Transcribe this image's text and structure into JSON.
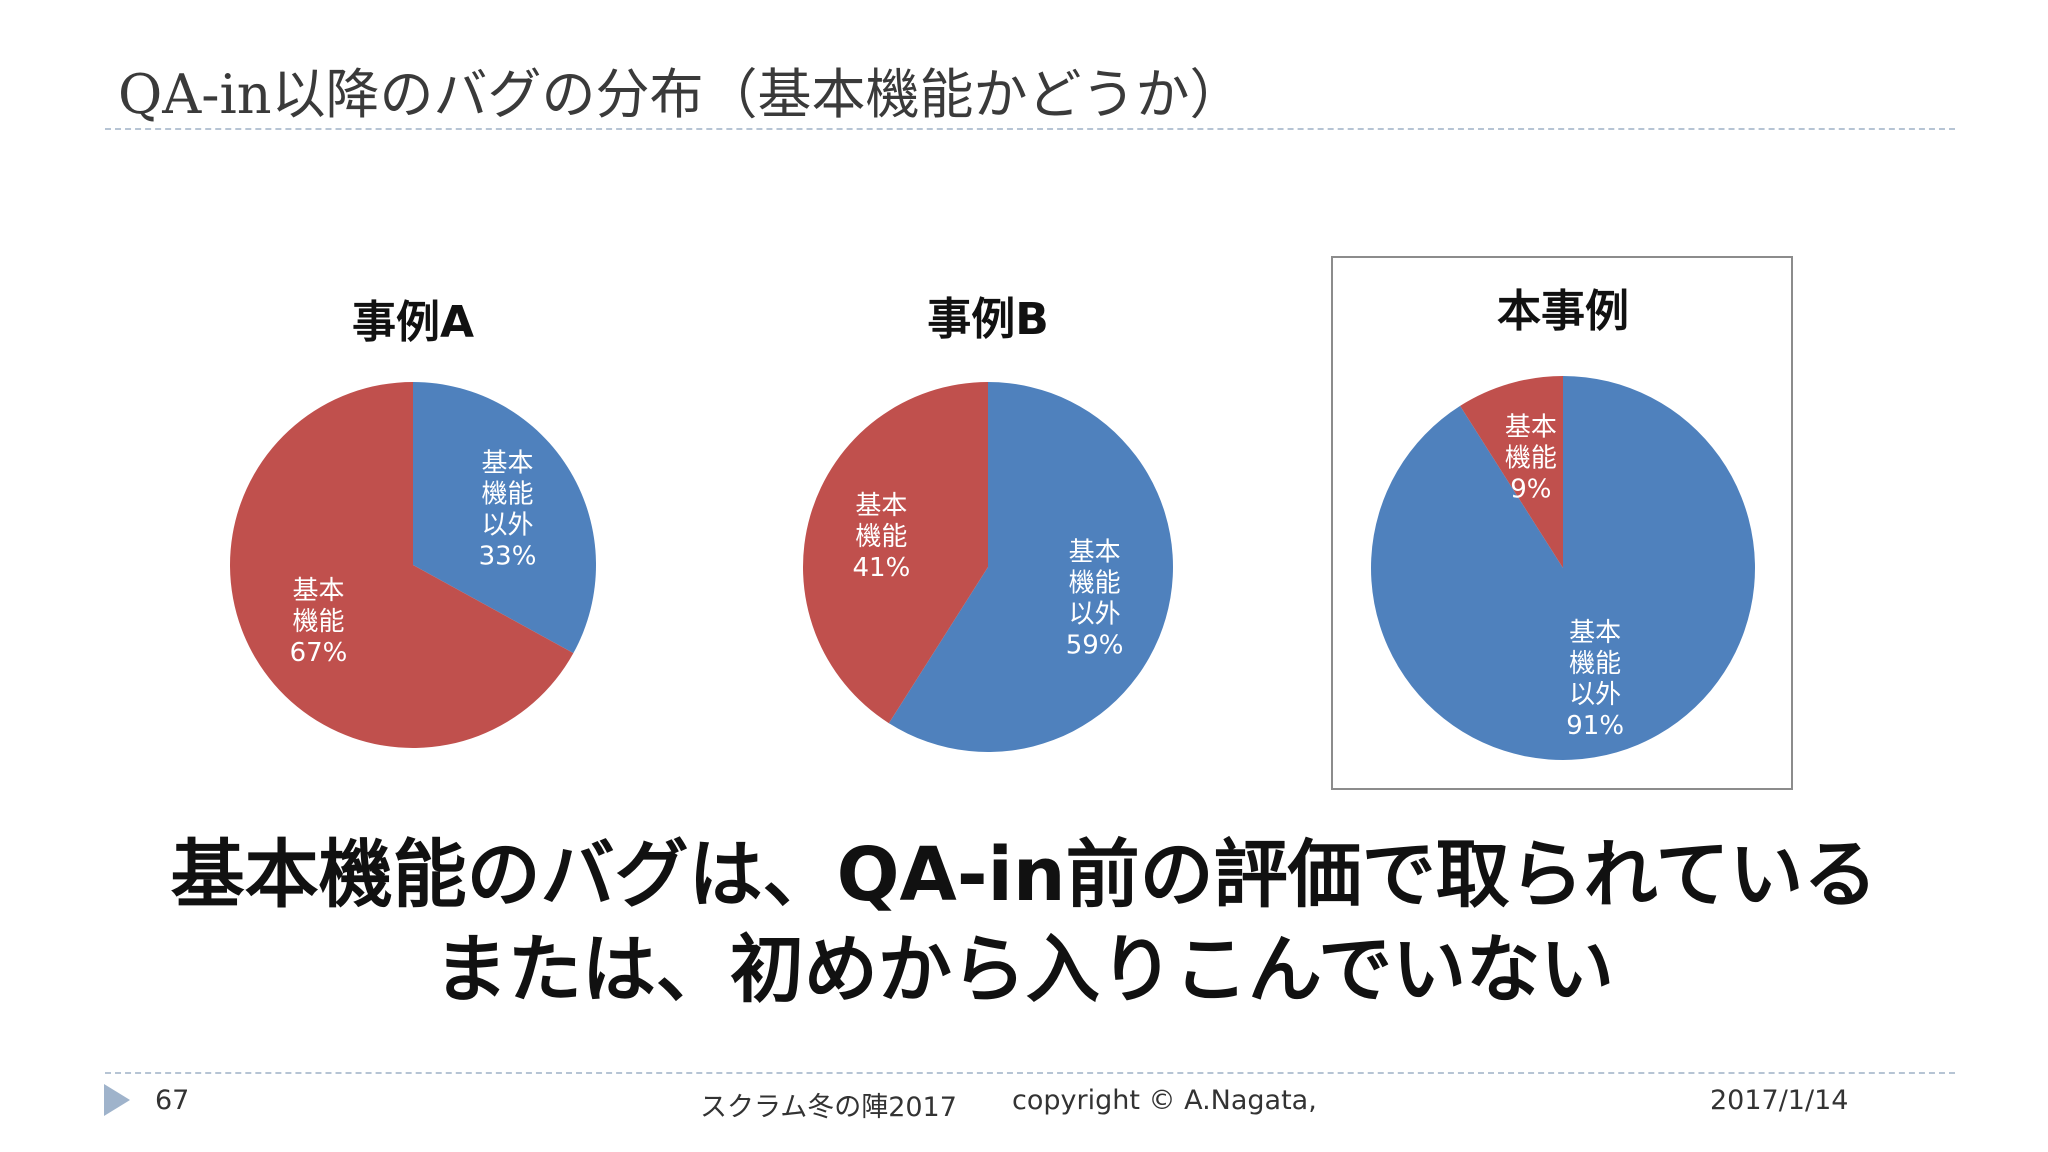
{
  "slide": {
    "title": "QA-in以降のバグの分布（基本機能かどうか）",
    "message_line1": "基本機能のバグは、QA-in前の評価で取られている",
    "message_line2": "または、初めから入りこんでいない"
  },
  "footer": {
    "page_number": "67",
    "event": "スクラム冬の陣2017",
    "copyright": "copyright © A.Nagata,",
    "date": "2017/1/14"
  },
  "colors": {
    "basic": "#c0504d",
    "non_basic": "#4f81bd"
  },
  "chart_data": [
    {
      "type": "pie",
      "title": "事例A",
      "slices": [
        {
          "name": "基本機能以外",
          "value": 33,
          "label_lines": [
            "基本",
            "機能",
            "以外",
            "33%"
          ],
          "color": "#4f81bd"
        },
        {
          "name": "基本機能",
          "value": 67,
          "label_lines": [
            "基本",
            "機能",
            "67%"
          ],
          "color": "#c0504d"
        }
      ],
      "highlighted": false
    },
    {
      "type": "pie",
      "title": "事例B",
      "slices": [
        {
          "name": "基本機能以外",
          "value": 59,
          "label_lines": [
            "基本",
            "機能",
            "以外",
            "59%"
          ],
          "color": "#4f81bd"
        },
        {
          "name": "基本機能",
          "value": 41,
          "label_lines": [
            "基本",
            "機能",
            "41%"
          ],
          "color": "#c0504d"
        }
      ],
      "highlighted": false
    },
    {
      "type": "pie",
      "title": "本事例",
      "slices": [
        {
          "name": "基本機能以外",
          "value": 91,
          "label_lines": [
            "基本",
            "機能",
            "以外",
            "91%"
          ],
          "color": "#4f81bd"
        },
        {
          "name": "基本機能",
          "value": 9,
          "label_lines": [
            "基本",
            "機能",
            "9%"
          ],
          "color": "#c0504d"
        }
      ],
      "highlighted": true
    }
  ]
}
